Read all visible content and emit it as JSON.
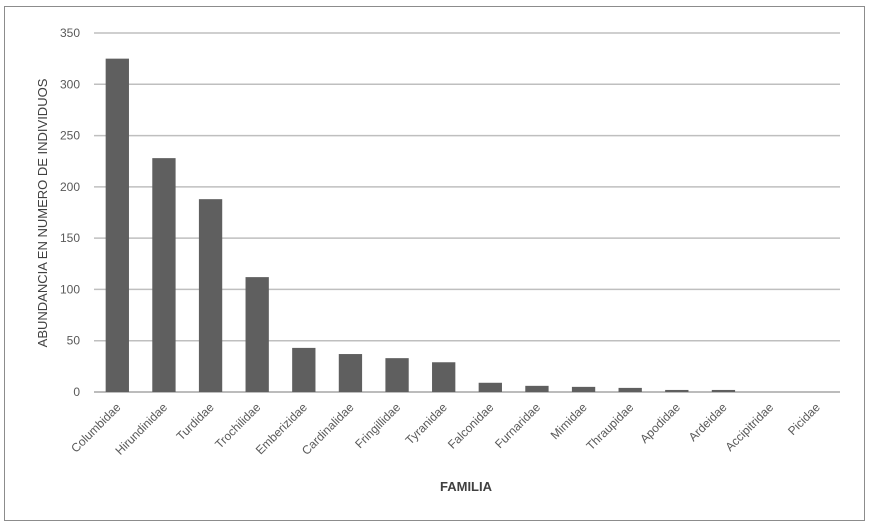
{
  "chart_data": {
    "type": "bar",
    "title": "",
    "xlabel": "FAMILIA",
    "ylabel": "ABUNDANCIA EN NUMERO DE INDIVIDUOS",
    "ylim": [
      0,
      350
    ],
    "yticks": [
      0,
      50,
      100,
      150,
      200,
      250,
      300,
      350
    ],
    "grid": true,
    "legend": "none",
    "bar_color": "#5f5f5f",
    "categories": [
      "Columbidae",
      "Hirundinidae",
      "Turdidae",
      "Trochilidae",
      "Emberizidae",
      "Cardinalidae",
      "Fringillidae",
      "Tyranidae",
      "Falconidae",
      "Furnaridae",
      "Mimidae",
      "Thraupidae",
      "Apodidae",
      "Ardeidae",
      "Accipitridae",
      "Picidae"
    ],
    "values": [
      325,
      228,
      188,
      112,
      43,
      37,
      33,
      29,
      9,
      6,
      5,
      4,
      2,
      2,
      0,
      0
    ]
  }
}
